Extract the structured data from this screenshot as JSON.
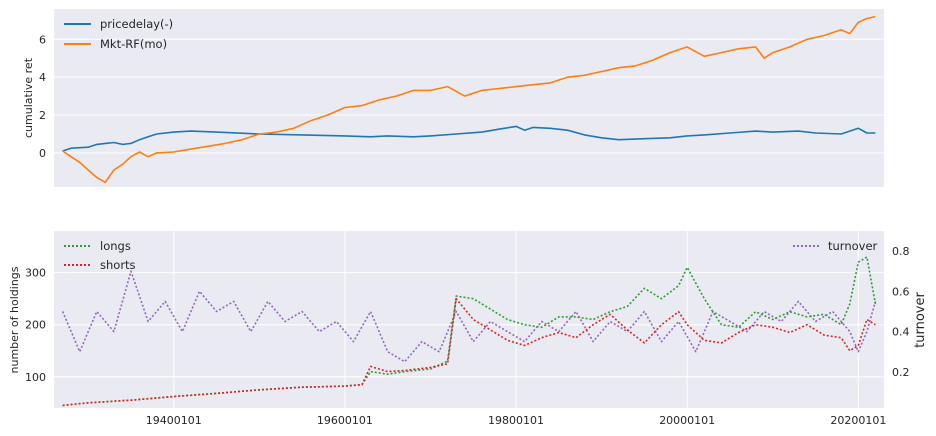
{
  "chart_data": [
    {
      "type": "line",
      "ylabel": "cumulative ret",
      "xlim": [
        1926,
        2023
      ],
      "ylim": [
        -1.8,
        7.6
      ],
      "yticks": [
        0,
        2,
        4,
        6
      ],
      "grid": true,
      "legend_position": "upper-left",
      "series": [
        {
          "name": "pricedelay(-)",
          "color": "#1f77b4",
          "style": "solid",
          "points": [
            [
              1927,
              0.1
            ],
            [
              1928,
              0.25
            ],
            [
              1930,
              0.3
            ],
            [
              1931,
              0.45
            ],
            [
              1932,
              0.5
            ],
            [
              1933,
              0.55
            ],
            [
              1934,
              0.45
            ],
            [
              1935,
              0.5
            ],
            [
              1936,
              0.7
            ],
            [
              1937,
              0.85
            ],
            [
              1938,
              1.0
            ],
            [
              1940,
              1.1
            ],
            [
              1942,
              1.15
            ],
            [
              1945,
              1.1
            ],
            [
              1950,
              1.0
            ],
            [
              1955,
              0.95
            ],
            [
              1960,
              0.9
            ],
            [
              1963,
              0.85
            ],
            [
              1965,
              0.9
            ],
            [
              1968,
              0.85
            ],
            [
              1970,
              0.9
            ],
            [
              1973,
              1.0
            ],
            [
              1976,
              1.1
            ],
            [
              1978,
              1.25
            ],
            [
              1980,
              1.4
            ],
            [
              1981,
              1.2
            ],
            [
              1982,
              1.35
            ],
            [
              1984,
              1.3
            ],
            [
              1986,
              1.2
            ],
            [
              1988,
              0.95
            ],
            [
              1990,
              0.8
            ],
            [
              1992,
              0.7
            ],
            [
              1995,
              0.75
            ],
            [
              1998,
              0.8
            ],
            [
              2000,
              0.9
            ],
            [
              2002,
              0.95
            ],
            [
              2005,
              1.05
            ],
            [
              2008,
              1.15
            ],
            [
              2010,
              1.1
            ],
            [
              2013,
              1.15
            ],
            [
              2015,
              1.05
            ],
            [
              2018,
              1.0
            ],
            [
              2020,
              1.3
            ],
            [
              2021,
              1.05
            ],
            [
              2022,
              1.05
            ]
          ]
        },
        {
          "name": "Mkt-RF(mo)",
          "color": "#ff7f0e",
          "style": "solid",
          "points": [
            [
              1927,
              0.1
            ],
            [
              1928,
              -0.2
            ],
            [
              1929,
              -0.5
            ],
            [
              1930,
              -0.9
            ],
            [
              1931,
              -1.3
            ],
            [
              1932,
              -1.55
            ],
            [
              1933,
              -0.9
            ],
            [
              1934,
              -0.6
            ],
            [
              1935,
              -0.2
            ],
            [
              1936,
              0.05
            ],
            [
              1937,
              -0.2
            ],
            [
              1938,
              0.0
            ],
            [
              1940,
              0.05
            ],
            [
              1942,
              0.2
            ],
            [
              1944,
              0.35
            ],
            [
              1946,
              0.5
            ],
            [
              1948,
              0.7
            ],
            [
              1950,
              1.0
            ],
            [
              1952,
              1.1
            ],
            [
              1954,
              1.3
            ],
            [
              1956,
              1.7
            ],
            [
              1958,
              2.0
            ],
            [
              1960,
              2.4
            ],
            [
              1962,
              2.5
            ],
            [
              1964,
              2.8
            ],
            [
              1966,
              3.0
            ],
            [
              1968,
              3.3
            ],
            [
              1970,
              3.3
            ],
            [
              1972,
              3.5
            ],
            [
              1974,
              3.0
            ],
            [
              1976,
              3.3
            ],
            [
              1978,
              3.4
            ],
            [
              1980,
              3.5
            ],
            [
              1982,
              3.6
            ],
            [
              1984,
              3.7
            ],
            [
              1986,
              4.0
            ],
            [
              1988,
              4.1
            ],
            [
              1990,
              4.3
            ],
            [
              1992,
              4.5
            ],
            [
              1994,
              4.6
            ],
            [
              1996,
              4.9
            ],
            [
              1998,
              5.3
            ],
            [
              2000,
              5.6
            ],
            [
              2002,
              5.1
            ],
            [
              2004,
              5.3
            ],
            [
              2006,
              5.5
            ],
            [
              2008,
              5.6
            ],
            [
              2009,
              5.0
            ],
            [
              2010,
              5.3
            ],
            [
              2012,
              5.6
            ],
            [
              2014,
              6.0
            ],
            [
              2016,
              6.2
            ],
            [
              2018,
              6.5
            ],
            [
              2019,
              6.3
            ],
            [
              2020,
              6.9
            ],
            [
              2021,
              7.1
            ],
            [
              2022,
              7.2
            ]
          ]
        }
      ]
    },
    {
      "type": "line",
      "ylabel": "number of holdings",
      "y2label": "turnover",
      "xlim": [
        1926,
        2023
      ],
      "xticks": [
        "19400101",
        "19600101",
        "19800101",
        "20000101",
        "20200101"
      ],
      "xtick_years": [
        1940,
        1960,
        1980,
        2000,
        2020
      ],
      "ylim": [
        40,
        380
      ],
      "yticks": [
        100,
        200,
        300
      ],
      "y2lim": [
        0.02,
        0.9
      ],
      "y2ticks": [
        0.2,
        0.4,
        0.6,
        0.8
      ],
      "grid": true,
      "legend_position": "upper-left",
      "legend2_position": "upper-right",
      "series": [
        {
          "name": "longs",
          "color": "#2ca02c",
          "style": "dotted",
          "axis": "left",
          "points": [
            [
              1927,
              45
            ],
            [
              1930,
              50
            ],
            [
              1935,
              55
            ],
            [
              1940,
              62
            ],
            [
              1945,
              68
            ],
            [
              1950,
              75
            ],
            [
              1955,
              80
            ],
            [
              1960,
              82
            ],
            [
              1962,
              85
            ],
            [
              1963,
              110
            ],
            [
              1965,
              105
            ],
            [
              1967,
              110
            ],
            [
              1970,
              115
            ],
            [
              1972,
              130
            ],
            [
              1973,
              255
            ],
            [
              1975,
              250
            ],
            [
              1977,
              230
            ],
            [
              1979,
              210
            ],
            [
              1981,
              200
            ],
            [
              1983,
              195
            ],
            [
              1985,
              215
            ],
            [
              1987,
              215
            ],
            [
              1989,
              210
            ],
            [
              1991,
              225
            ],
            [
              1993,
              235
            ],
            [
              1995,
              270
            ],
            [
              1997,
              250
            ],
            [
              1999,
              275
            ],
            [
              2000,
              310
            ],
            [
              2002,
              250
            ],
            [
              2004,
              200
            ],
            [
              2006,
              195
            ],
            [
              2008,
              225
            ],
            [
              2010,
              210
            ],
            [
              2012,
              225
            ],
            [
              2014,
              215
            ],
            [
              2016,
              220
            ],
            [
              2018,
              200
            ],
            [
              2019,
              240
            ],
            [
              2020,
              320
            ],
            [
              2021,
              330
            ],
            [
              2022,
              240
            ]
          ]
        },
        {
          "name": "shorts",
          "color": "#d62728",
          "style": "dotted",
          "axis": "left",
          "points": [
            [
              1927,
              45
            ],
            [
              1930,
              50
            ],
            [
              1935,
              55
            ],
            [
              1940,
              62
            ],
            [
              1945,
              68
            ],
            [
              1950,
              75
            ],
            [
              1955,
              80
            ],
            [
              1960,
              82
            ],
            [
              1962,
              85
            ],
            [
              1963,
              120
            ],
            [
              1965,
              110
            ],
            [
              1967,
              112
            ],
            [
              1970,
              118
            ],
            [
              1972,
              125
            ],
            [
              1973,
              250
            ],
            [
              1975,
              210
            ],
            [
              1977,
              190
            ],
            [
              1979,
              170
            ],
            [
              1981,
              160
            ],
            [
              1983,
              175
            ],
            [
              1985,
              185
            ],
            [
              1987,
              175
            ],
            [
              1989,
              200
            ],
            [
              1991,
              220
            ],
            [
              1993,
              190
            ],
            [
              1995,
              165
            ],
            [
              1997,
              200
            ],
            [
              1999,
              225
            ],
            [
              2000,
              200
            ],
            [
              2002,
              170
            ],
            [
              2004,
              165
            ],
            [
              2006,
              185
            ],
            [
              2008,
              200
            ],
            [
              2010,
              195
            ],
            [
              2012,
              185
            ],
            [
              2014,
              200
            ],
            [
              2016,
              180
            ],
            [
              2018,
              175
            ],
            [
              2019,
              150
            ],
            [
              2020,
              160
            ],
            [
              2021,
              210
            ],
            [
              2022,
              200
            ]
          ]
        },
        {
          "name": "turnover",
          "color": "#9467bd",
          "style": "dotted",
          "axis": "right",
          "points": [
            [
              1927,
              0.5
            ],
            [
              1929,
              0.3
            ],
            [
              1931,
              0.5
            ],
            [
              1933,
              0.4
            ],
            [
              1935,
              0.7
            ],
            [
              1937,
              0.45
            ],
            [
              1939,
              0.55
            ],
            [
              1941,
              0.4
            ],
            [
              1943,
              0.6
            ],
            [
              1945,
              0.5
            ],
            [
              1947,
              0.55
            ],
            [
              1949,
              0.4
            ],
            [
              1951,
              0.55
            ],
            [
              1953,
              0.45
            ],
            [
              1955,
              0.5
            ],
            [
              1957,
              0.4
            ],
            [
              1959,
              0.45
            ],
            [
              1961,
              0.35
            ],
            [
              1963,
              0.5
            ],
            [
              1965,
              0.3
            ],
            [
              1967,
              0.25
            ],
            [
              1969,
              0.35
            ],
            [
              1971,
              0.3
            ],
            [
              1973,
              0.5
            ],
            [
              1975,
              0.35
            ],
            [
              1977,
              0.45
            ],
            [
              1979,
              0.4
            ],
            [
              1981,
              0.35
            ],
            [
              1983,
              0.45
            ],
            [
              1985,
              0.4
            ],
            [
              1987,
              0.5
            ],
            [
              1989,
              0.35
            ],
            [
              1991,
              0.45
            ],
            [
              1993,
              0.4
            ],
            [
              1995,
              0.5
            ],
            [
              1997,
              0.35
            ],
            [
              1999,
              0.45
            ],
            [
              2001,
              0.3
            ],
            [
              2003,
              0.5
            ],
            [
              2005,
              0.45
            ],
            [
              2007,
              0.4
            ],
            [
              2009,
              0.5
            ],
            [
              2011,
              0.45
            ],
            [
              2013,
              0.55
            ],
            [
              2015,
              0.45
            ],
            [
              2017,
              0.5
            ],
            [
              2019,
              0.4
            ],
            [
              2020,
              0.3
            ],
            [
              2021,
              0.4
            ],
            [
              2022,
              0.55
            ]
          ]
        }
      ]
    }
  ]
}
